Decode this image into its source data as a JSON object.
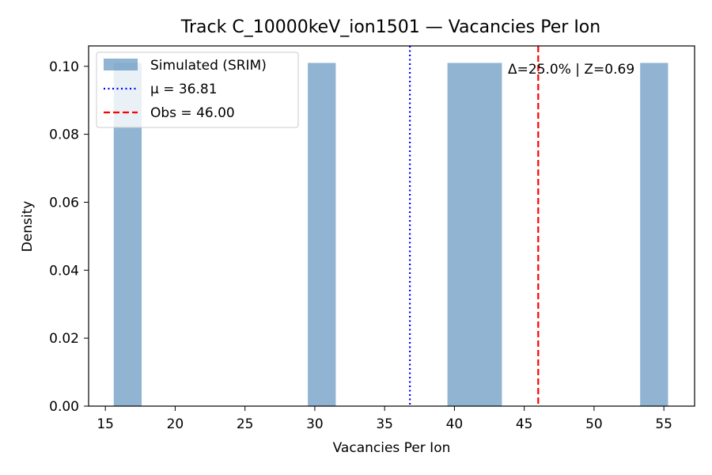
{
  "chart_data": {
    "type": "bar",
    "title": "Track C_10000keV_ion1501 — Vacancies Per Ion",
    "xlabel": "Vacancies Per Ion",
    "ylabel": "Density",
    "xlim": [
      13.8,
      57.2
    ],
    "ylim": [
      0,
      0.106
    ],
    "xticks": [
      15,
      20,
      25,
      30,
      35,
      40,
      45,
      50,
      55
    ],
    "yticks": [
      0.0,
      0.02,
      0.04,
      0.06,
      0.08,
      0.1
    ],
    "bars": [
      {
        "x0": 15.6,
        "x1": 17.6,
        "value": 0.101
      },
      {
        "x0": 29.5,
        "x1": 31.5,
        "value": 0.101
      },
      {
        "x0": 39.5,
        "x1": 43.4,
        "value": 0.101
      },
      {
        "x0": 53.3,
        "x1": 55.3,
        "value": 0.101
      }
    ],
    "bar_color": "#4682b4",
    "mean_line": {
      "label": "μ = 36.81",
      "value": 36.81,
      "color": "#0000ff"
    },
    "obs_line": {
      "label": "Obs = 46.00",
      "value": 46.0,
      "color": "#ff0000"
    },
    "legend": {
      "position": "top-left",
      "entries": [
        "Simulated (SRIM)",
        "μ = 36.81",
        "Obs = 46.00"
      ]
    },
    "annotation": "Δ=25.0% | Z=0.69",
    "grid": false
  }
}
